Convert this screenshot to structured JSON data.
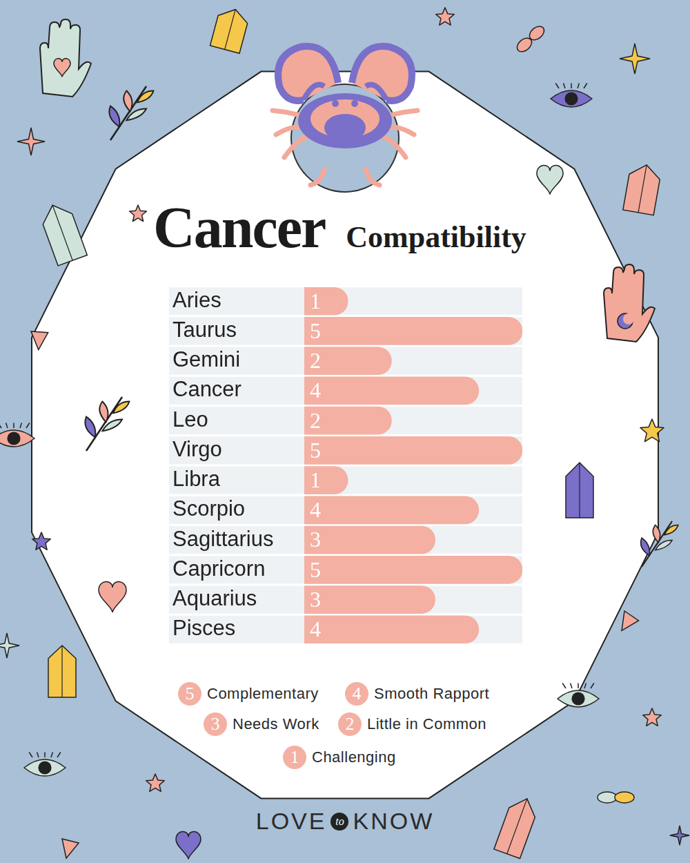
{
  "chart_data": {
    "type": "bar",
    "orientation": "horizontal",
    "title": "Cancer",
    "subtitle": "Compatibility",
    "categories": [
      "Aries",
      "Taurus",
      "Gemini",
      "Cancer",
      "Leo",
      "Virgo",
      "Libra",
      "Scorpio",
      "Sagittarius",
      "Capricorn",
      "Aquarius",
      "Pisces"
    ],
    "values": [
      1,
      5,
      2,
      4,
      2,
      5,
      1,
      4,
      3,
      5,
      3,
      4
    ],
    "color": "#f4b0a2",
    "xlim": [
      0,
      5
    ],
    "grid": false,
    "data_labels": true,
    "tick_labels": "y",
    "rating_key": [
      {
        "value": 5,
        "label": "Complementary"
      },
      {
        "value": 4,
        "label": "Smooth Rapport"
      },
      {
        "value": 3,
        "label": "Needs Work"
      },
      {
        "value": 2,
        "label": "Little in Common"
      },
      {
        "value": 1,
        "label": "Challenging"
      }
    ]
  },
  "brand": {
    "left": "LOVE",
    "middle": "to",
    "right": "KNOW"
  }
}
